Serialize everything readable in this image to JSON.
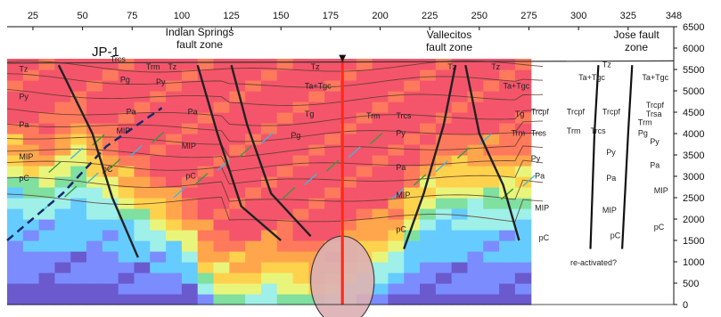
{
  "chart_data": {
    "type": "heatmap",
    "title": "",
    "xlabel": "",
    "ylabel": "",
    "x_ticks": [
      25,
      50,
      75,
      100,
      125,
      150,
      175,
      200,
      225,
      250,
      275,
      300,
      325,
      348
    ],
    "y_ticks": [
      0,
      500,
      1000,
      1500,
      2000,
      2500,
      3000,
      3500,
      4000,
      4500,
      5000,
      5500,
      6000,
      6500
    ],
    "xlim": [
      12,
      348
    ],
    "ylim": [
      0,
      6500
    ],
    "grid": false,
    "colormap": [
      "#6a5acd",
      "#7b8cff",
      "#66ccff",
      "#9ef0e8",
      "#7fe0a0",
      "#e9f57a",
      "#ffd24d",
      "#ffa64d",
      "#ff7a5c",
      "#f4556b"
    ],
    "resistivity_columns": {
      "x_start": 12,
      "x_step": 8,
      "y_start": 0,
      "y_step": 250,
      "description_levels_count": 10,
      "top_elevation": [
        5600,
        5600,
        5600,
        5600,
        5600,
        5600,
        5600,
        5600,
        5600,
        5600,
        5600,
        5600,
        5600,
        5600,
        5600,
        5600,
        5600,
        5600,
        5600,
        5600,
        5600,
        5600,
        5600,
        5600,
        5600,
        5600,
        5600,
        5600,
        5600,
        5600,
        5600,
        5600,
        5600
      ],
      "high_band_depth": [
        3300,
        3100,
        3000,
        3400,
        3700,
        3200,
        2900,
        2600,
        2300,
        2100,
        1800,
        1500,
        900,
        700,
        600,
        600,
        800,
        700,
        600,
        400,
        500,
        900,
        1200,
        1300,
        1500,
        2200,
        2700,
        2900,
        3000,
        3000,
        3000,
        3000,
        3000
      ],
      "low_band_depth": [
        2600,
        2400,
        2400,
        2500,
        2600,
        2400,
        2300,
        2000,
        1800,
        1600,
        1400,
        1100,
        300,
        0,
        0,
        0,
        0,
        0,
        0,
        0,
        0,
        0,
        400,
        500,
        800,
        1500,
        1900,
        2100,
        2200,
        2200,
        2200,
        2200,
        2200
      ]
    },
    "faults": [
      {
        "name": "JP-1",
        "points": [
          [
            38,
            5600
          ],
          [
            55,
            4000
          ],
          [
            65,
            2500
          ],
          [
            78,
            1100
          ]
        ]
      },
      {
        "name": "Indian Springs west",
        "points": [
          [
            108,
            5600
          ],
          [
            118,
            4000
          ],
          [
            130,
            2300
          ],
          [
            150,
            1500
          ]
        ]
      },
      {
        "name": "Indian Springs east",
        "points": [
          [
            125,
            5600
          ],
          [
            133,
            4200
          ],
          [
            145,
            2600
          ],
          [
            165,
            1600
          ]
        ]
      },
      {
        "name": "Axis",
        "points": [
          [
            181,
            5800
          ],
          [
            181,
            0
          ]
        ]
      },
      {
        "name": "Vallecitos west",
        "points": [
          [
            238,
            5600
          ],
          [
            232,
            4200
          ],
          [
            222,
            2600
          ],
          [
            212,
            1300
          ]
        ]
      },
      {
        "name": "Vallecitos east",
        "points": [
          [
            243,
            5600
          ],
          [
            250,
            4000
          ],
          [
            262,
            2800
          ],
          [
            270,
            1500
          ]
        ]
      },
      {
        "name": "Jose fault west",
        "points": [
          [
            310,
            5600
          ],
          [
            308,
            4000
          ],
          [
            306,
            1300
          ]
        ]
      },
      {
        "name": "Jose fault east",
        "points": [
          [
            327,
            5600
          ],
          [
            325,
            4000
          ],
          [
            322,
            1300
          ]
        ]
      }
    ],
    "unit_labels": [
      {
        "text": "Tz",
        "x": 18,
        "y": 5450
      },
      {
        "text": "Py",
        "x": 18,
        "y": 4800
      },
      {
        "text": "Pa",
        "x": 18,
        "y": 4150
      },
      {
        "text": "MIP",
        "x": 18,
        "y": 3400
      },
      {
        "text": "pC",
        "x": 18,
        "y": 2900
      },
      {
        "text": "Trcs",
        "x": 64,
        "y": 5680
      },
      {
        "text": "Trm",
        "x": 82,
        "y": 5500
      },
      {
        "text": "Tz",
        "x": 93,
        "y": 5500
      },
      {
        "text": "Pg",
        "x": 69,
        "y": 5200
      },
      {
        "text": "Py",
        "x": 87,
        "y": 5150
      },
      {
        "text": "Pa",
        "x": 72,
        "y": 4450
      },
      {
        "text": "MIP",
        "x": 67,
        "y": 4000
      },
      {
        "text": "Pa",
        "x": 103,
        "y": 4450
      },
      {
        "text": "MIP",
        "x": 100,
        "y": 3650
      },
      {
        "text": "pC",
        "x": 60,
        "y": 3100
      },
      {
        "text": "pC",
        "x": 102,
        "y": 2950
      },
      {
        "text": "Tz",
        "x": 165,
        "y": 5500
      },
      {
        "text": "Ta+Tgc",
        "x": 162,
        "y": 5050
      },
      {
        "text": "Tg",
        "x": 162,
        "y": 4400
      },
      {
        "text": "Pg",
        "x": 155,
        "y": 3900
      },
      {
        "text": "Trm",
        "x": 193,
        "y": 4350
      },
      {
        "text": "Trcs",
        "x": 208,
        "y": 4350
      },
      {
        "text": "Py",
        "x": 208,
        "y": 3950
      },
      {
        "text": "Pa",
        "x": 208,
        "y": 3150
      },
      {
        "text": "MIP",
        "x": 208,
        "y": 2500
      },
      {
        "text": "pC",
        "x": 208,
        "y": 1700
      },
      {
        "text": "Tz",
        "x": 234,
        "y": 5500
      },
      {
        "text": "Tz",
        "x": 256,
        "y": 5500
      },
      {
        "text": "Ta+Tgc",
        "x": 262,
        "y": 5050
      },
      {
        "text": "Tg",
        "x": 268,
        "y": 4400
      },
      {
        "text": "Trm",
        "x": 266,
        "y": 3950
      },
      {
        "text": "Trcs",
        "x": 276,
        "y": 3950
      },
      {
        "text": "Trcpf",
        "x": 276,
        "y": 4450
      },
      {
        "text": "Py",
        "x": 276,
        "y": 3350
      },
      {
        "text": "Pa",
        "x": 278,
        "y": 2950
      },
      {
        "text": "MIP",
        "x": 278,
        "y": 2200
      },
      {
        "text": "pC",
        "x": 280,
        "y": 1500
      },
      {
        "text": "Tz",
        "x": 312,
        "y": 5550
      },
      {
        "text": "Ta+Tgc",
        "x": 300,
        "y": 5250
      },
      {
        "text": "Ta+Tgc",
        "x": 332,
        "y": 5250
      },
      {
        "text": "Trcpf",
        "x": 294,
        "y": 4450
      },
      {
        "text": "Trcpf",
        "x": 312,
        "y": 4450
      },
      {
        "text": "Trcpf",
        "x": 334,
        "y": 4600
      },
      {
        "text": "Trsa",
        "x": 334,
        "y": 4400
      },
      {
        "text": "Trm",
        "x": 330,
        "y": 4200
      },
      {
        "text": "Trm",
        "x": 294,
        "y": 4000
      },
      {
        "text": "Trcs",
        "x": 306,
        "y": 4000
      },
      {
        "text": "Pg",
        "x": 330,
        "y": 3950
      },
      {
        "text": "Py",
        "x": 336,
        "y": 3750
      },
      {
        "text": "Py",
        "x": 314,
        "y": 3500
      },
      {
        "text": "Pa",
        "x": 314,
        "y": 2900
      },
      {
        "text": "MIP",
        "x": 312,
        "y": 2150
      },
      {
        "text": "pC",
        "x": 316,
        "y": 1550
      },
      {
        "text": "Pa",
        "x": 336,
        "y": 3200
      },
      {
        "text": "MIP",
        "x": 338,
        "y": 2600
      },
      {
        "text": "pC",
        "x": 338,
        "y": 1750
      }
    ]
  },
  "labels": {
    "jp1": "JP-1",
    "indian_springs_line1": "Indian Springs",
    "indian_springs_line2": "fault zone",
    "vallecitos_line1": "Vallecitos",
    "vallecitos_line2": "fault zone",
    "jose_line1": "Jose fault",
    "jose_line2": "zone",
    "reactivated": "re-activated?"
  }
}
